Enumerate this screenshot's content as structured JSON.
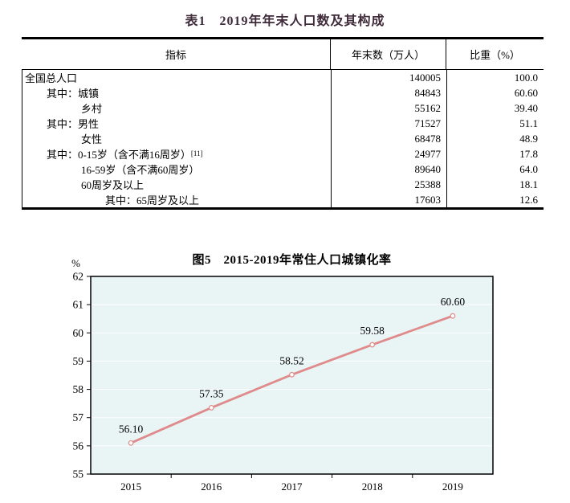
{
  "table": {
    "title": "表1　2019年年末人口数及其构成",
    "columns": [
      "指标",
      "年末数（万人）",
      "比重（%）"
    ],
    "rows": [
      {
        "label": "全国总人口",
        "indent": 0,
        "value": "140005",
        "share": "100.0"
      },
      {
        "label": "其中：城镇",
        "indent": 1,
        "value": "84843",
        "share": "60.60"
      },
      {
        "label": "乡村",
        "indent": 2,
        "value": "55162",
        "share": "39.40"
      },
      {
        "label": "其中：男性",
        "indent": 1,
        "value": "71527",
        "share": "51.1"
      },
      {
        "label": "女性",
        "indent": 2,
        "value": "68478",
        "share": "48.9"
      },
      {
        "label": "其中：0-15岁（含不满16周岁）",
        "sup": "[11]",
        "indent": 1,
        "value": "24977",
        "share": "17.8"
      },
      {
        "label": "16-59岁（含不满60周岁）",
        "indent": 2,
        "value": "89640",
        "share": "64.0"
      },
      {
        "label": "60周岁及以上",
        "indent": 2,
        "value": "25388",
        "share": "18.1"
      },
      {
        "label": "其中：65周岁及以上",
        "indent": 3,
        "value": "17603",
        "share": "12.6"
      }
    ]
  },
  "chart_data": {
    "type": "line",
    "title": "图5　2015-2019年常住人口城镇化率",
    "unit_label": "%",
    "xlabel": "",
    "ylabel": "%",
    "categories": [
      "2015",
      "2016",
      "2017",
      "2018",
      "2019"
    ],
    "values": [
      56.1,
      57.35,
      58.52,
      59.58,
      60.6
    ],
    "data_labels": [
      "56.10",
      "57.35",
      "58.52",
      "59.58",
      "60.60"
    ],
    "ylim": [
      55,
      62
    ],
    "ytick_step": 1,
    "grid": true,
    "legend": "none",
    "line_color": "#e08b8b",
    "marker_fill": "#ffffff",
    "plot_bg": "#e9f4f5",
    "grid_color": "#ffffff",
    "axis_color": "#000000"
  }
}
